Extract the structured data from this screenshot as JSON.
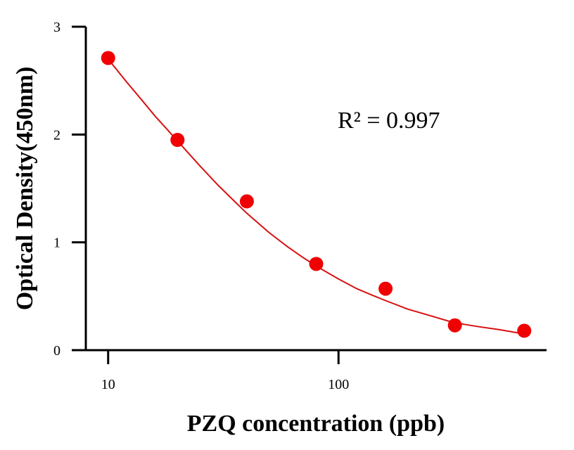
{
  "chart_data": {
    "type": "scatter",
    "xlabel": "PZQ concentration (ppb)",
    "ylabel": "Optical Density(450nm)",
    "xscale": "log",
    "xlim": [
      8,
      800
    ],
    "ylim": [
      0,
      3
    ],
    "xticks": [
      10,
      100
    ],
    "xtick_labels": [
      "10",
      "100"
    ],
    "yticks": [
      0,
      1,
      2,
      3
    ],
    "ytick_labels": [
      "0",
      "1",
      "2",
      "3"
    ],
    "grid": false,
    "legend": "none",
    "annotation": "R² = 0.997",
    "point_color": "#f00000",
    "line_color": "#d81010",
    "series": [
      {
        "x": [
          10,
          20,
          40,
          80,
          160,
          320,
          640
        ],
        "y": [
          2.71,
          1.95,
          1.38,
          0.8,
          0.57,
          0.23,
          0.18
        ]
      }
    ],
    "fit_curve": {
      "x": [
        10,
        12,
        14,
        16,
        18,
        20,
        25,
        30,
        35,
        40,
        50,
        60,
        70,
        80,
        100,
        120,
        140,
        160,
        200,
        250,
        300,
        350,
        400,
        500,
        640
      ],
      "y": [
        2.7,
        2.49,
        2.32,
        2.17,
        2.05,
        1.94,
        1.71,
        1.53,
        1.39,
        1.27,
        1.09,
        0.96,
        0.86,
        0.78,
        0.66,
        0.57,
        0.51,
        0.46,
        0.38,
        0.32,
        0.27,
        0.24,
        0.22,
        0.19,
        0.15
      ]
    }
  }
}
